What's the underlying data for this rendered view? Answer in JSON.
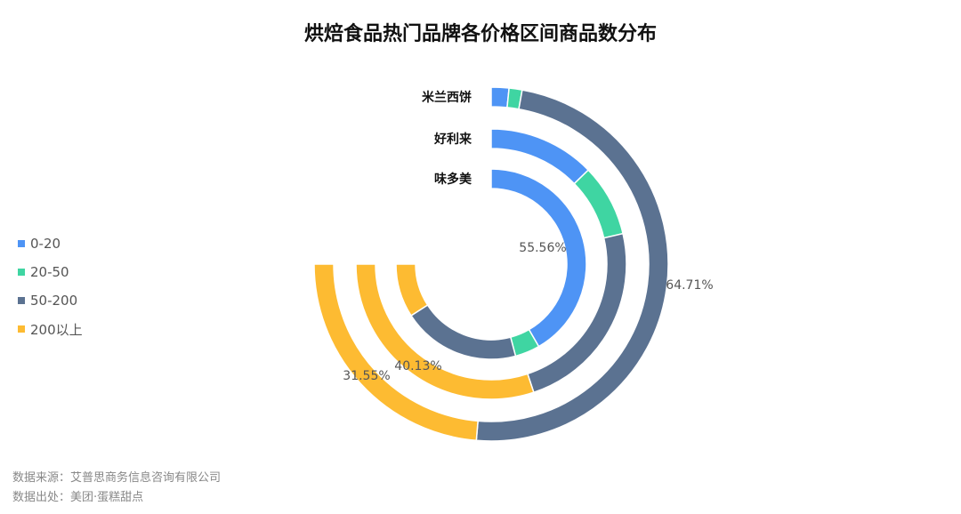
{
  "chart_data": {
    "type": "radial-bar",
    "title": "烘焙食品热门品牌各价格区间商品数分布",
    "categories": [
      "米兰西饼",
      "好利来",
      "味多美"
    ],
    "series": [
      {
        "name": "0-20",
        "color": "#4e94f5",
        "values": [
          2.15,
          17.0,
          55.56
        ]
      },
      {
        "name": "20-50",
        "color": "#3fd5a2",
        "values": [
          1.59,
          11.5,
          5.6
        ]
      },
      {
        "name": "50-200",
        "color": "#5b7291",
        "values": [
          64.71,
          31.37,
          26.7
        ]
      },
      {
        "name": "200以上",
        "color": "#fdbb32",
        "values": [
          31.55,
          40.13,
          12.14
        ]
      }
    ],
    "data_labels": [
      {
        "category": "味多美",
        "series": "0-20",
        "text": "55.56%"
      },
      {
        "category": "米兰西饼",
        "series": "50-200",
        "text": "64.71%"
      },
      {
        "category": "好利来",
        "series": "200以上",
        "text": "40.13%"
      },
      {
        "category": "米兰西饼",
        "series": "200以上",
        "text": "31.55%"
      }
    ],
    "sweep_degrees": 270,
    "unit": "%",
    "legend_position": "left"
  },
  "footer": {
    "source": "数据来源：艾普思商务信息咨询有限公司",
    "origin": "数据出处：美团·蛋糕甜点"
  }
}
